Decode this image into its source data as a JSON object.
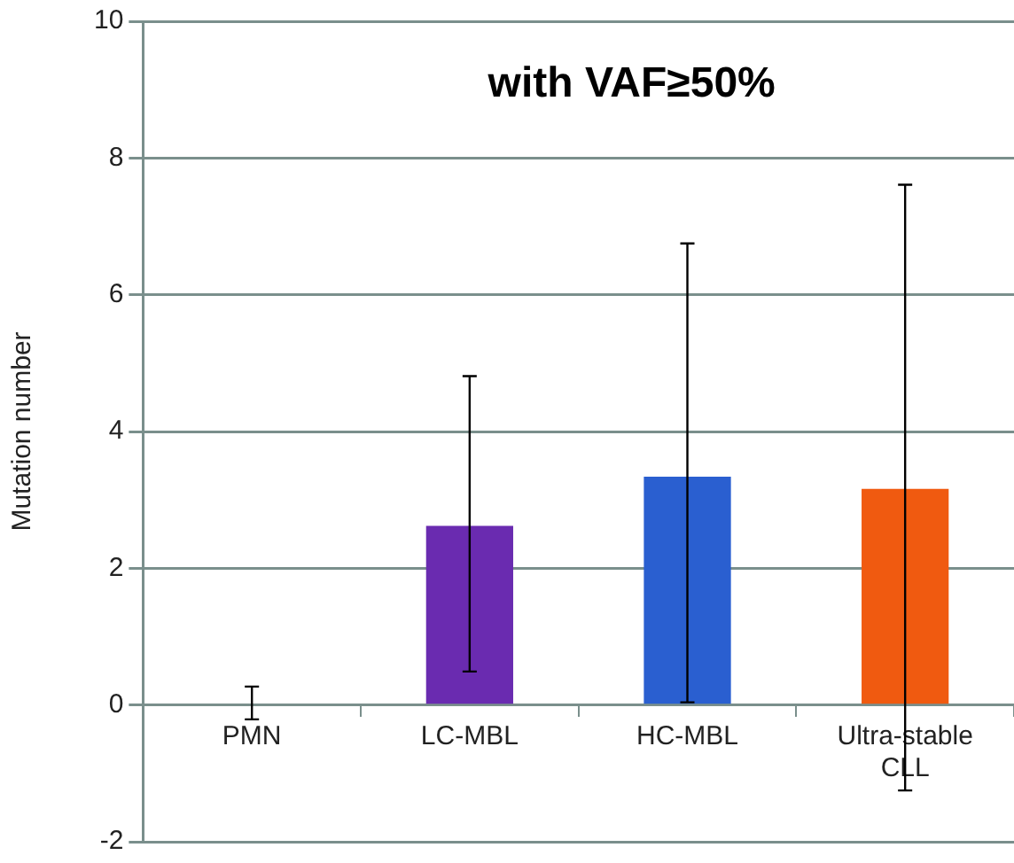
{
  "chart_data": {
    "type": "bar",
    "title": "with VAF≥50%",
    "ylabel": "Mutation number",
    "categories": [
      "PMN",
      "LC-MBL",
      "HC-MBL",
      "Ultra-stable CLL"
    ],
    "values": [
      0,
      2.62,
      3.34,
      3.16
    ],
    "colors": [
      "#6a2bb0",
      "#6a2bb0",
      "#2a5fd0",
      "#f05a10"
    ],
    "errors": [
      [
        -0.21,
        0.27
      ],
      [
        0.49,
        4.81
      ],
      [
        0.04,
        6.75
      ],
      [
        -1.25,
        7.61
      ]
    ],
    "ylim": [
      -2,
      10
    ],
    "yticks": [
      -2,
      0,
      2,
      4,
      6,
      8,
      10
    ],
    "grid": "y",
    "legend": false
  }
}
